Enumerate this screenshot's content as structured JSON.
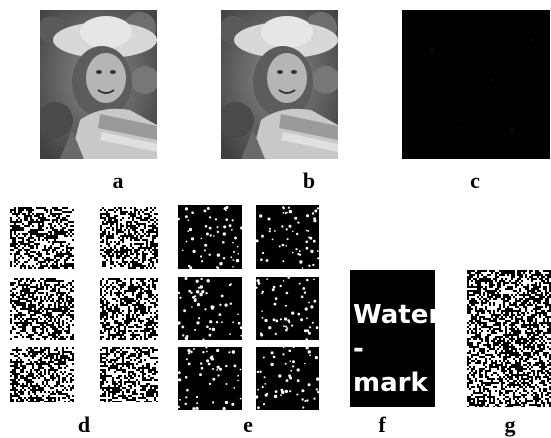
{
  "labels": {
    "a": "a",
    "b": "b",
    "c": "c",
    "d": "d",
    "e": "e",
    "f": "f",
    "g": "g"
  },
  "watermark": {
    "line1": "Water",
    "line2": "-mark"
  },
  "colors": {
    "background": "#ffffff",
    "dark": "#000000",
    "light": "#ffffff"
  }
}
